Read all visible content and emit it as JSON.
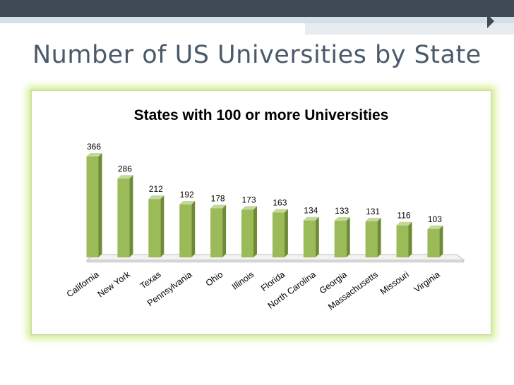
{
  "slide": {
    "title": "Number of US Universities by State"
  },
  "colors": {
    "bar_front": "#9bbb59",
    "bar_side": "#6f8a34",
    "bar_top": "#c3d89a",
    "glow": "#d7ef9a"
  },
  "chart_data": {
    "type": "bar",
    "title": "States with 100 or more Universities",
    "xlabel": "",
    "ylabel": "",
    "ylim": [
      0,
      366
    ],
    "grid": false,
    "legend": "none",
    "categories": [
      "California",
      "New York",
      "Texas",
      "Pennsylvania",
      "Ohio",
      "Illinois",
      "Florida",
      "North Carolina",
      "Georgia",
      "Massachusetts",
      "Missouri",
      "Virginia"
    ],
    "values": [
      366,
      286,
      212,
      192,
      178,
      173,
      163,
      134,
      133,
      131,
      116,
      103
    ],
    "value_labels": [
      "366",
      "286",
      "212",
      "192",
      "178",
      "173",
      "163",
      "134",
      "133",
      "131",
      "116",
      "103"
    ]
  }
}
